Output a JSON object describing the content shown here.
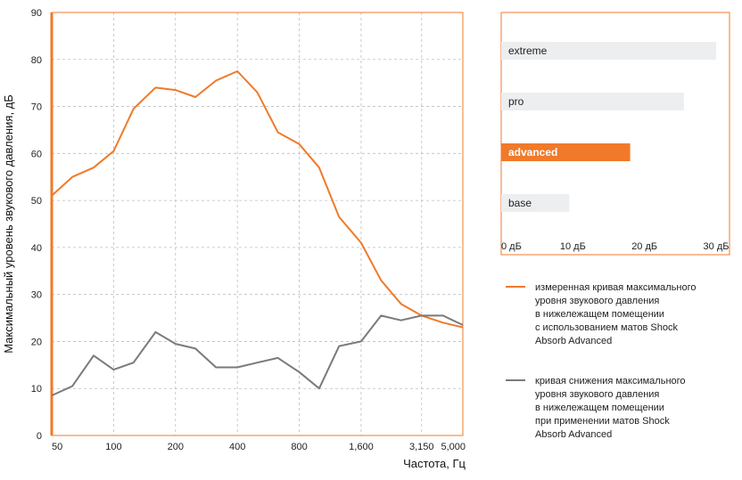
{
  "chart_data": [
    {
      "type": "line",
      "ylabel": "Максимальный уровень звукового давления, дБ",
      "xlabel": "Частота, Гц",
      "ylim": [
        0,
        90
      ],
      "yticks": [
        "0",
        "10",
        "20",
        "30",
        "40",
        "50",
        "60",
        "70",
        "80",
        "90"
      ],
      "xticks": [
        "50",
        "100",
        "200",
        "400",
        "800",
        "1,600",
        "3,150",
        "5,000"
      ],
      "grid": true,
      "series": [
        {
          "name": "измеренная кривая максимального уровня звукового давления в нижележащем помещении с использованием матов Shock Absorb Advanced",
          "color": "#f07a2a",
          "points": [
            [
              50,
              51
            ],
            [
              63,
              55
            ],
            [
              80,
              57
            ],
            [
              100,
              60.5
            ],
            [
              125,
              69.5
            ],
            [
              160,
              74
            ],
            [
              200,
              73.5
            ],
            [
              250,
              72
            ],
            [
              315,
              75.5
            ],
            [
              400,
              77.5
            ],
            [
              500,
              73
            ],
            [
              630,
              64.5
            ],
            [
              800,
              62
            ],
            [
              1000,
              57
            ],
            [
              1250,
              46.5
            ],
            [
              1600,
              41
            ],
            [
              2000,
              33
            ],
            [
              2500,
              28
            ],
            [
              3150,
              25.5
            ],
            [
              4000,
              24
            ],
            [
              5000,
              23
            ]
          ]
        },
        {
          "name": "кривая снижения максимального уровня звукового давления в нижележащем помещении при применении матов Shock Absorb Advanced",
          "color": "#7a7a7a",
          "points": [
            [
              50,
              8.5
            ],
            [
              63,
              10.5
            ],
            [
              80,
              17
            ],
            [
              100,
              14
            ],
            [
              125,
              15.5
            ],
            [
              160,
              22
            ],
            [
              200,
              19.5
            ],
            [
              250,
              18.5
            ],
            [
              315,
              14.5
            ],
            [
              400,
              14.5
            ],
            [
              500,
              15.5
            ],
            [
              630,
              16.5
            ],
            [
              800,
              13.5
            ],
            [
              1000,
              10
            ],
            [
              1250,
              19
            ],
            [
              1600,
              20
            ],
            [
              2000,
              25.5
            ],
            [
              2500,
              24.5
            ],
            [
              3150,
              25.5
            ],
            [
              4000,
              25.5
            ],
            [
              5000,
              23.5
            ]
          ]
        }
      ]
    },
    {
      "type": "bar",
      "orientation": "horizontal",
      "categories": [
        "extreme",
        "pro",
        "advanced",
        "base"
      ],
      "values": [
        30,
        25.5,
        18,
        9.5
      ],
      "highlight": "advanced",
      "xlim": [
        0,
        30
      ],
      "xticks": [
        "0 дБ",
        "10 дБ",
        "20 дБ",
        "30 дБ"
      ],
      "colors": {
        "bar": "#eceef0",
        "highlight": "#f07a2a",
        "frame": "#f07a2a"
      }
    }
  ],
  "legend": [
    {
      "text": "измеренная кривая максимального\nуровня звукового давления\nв нижележащем помещении\nс использованием матов Shock\nAbsorb Advanced",
      "color": "#f07a2a"
    },
    {
      "text": "кривая снижения максимального\nуровня звукового давления\nв нижележащем помещении\nпри применении матов Shock\nAbsorb Advanced",
      "color": "#7a7a7a"
    }
  ]
}
